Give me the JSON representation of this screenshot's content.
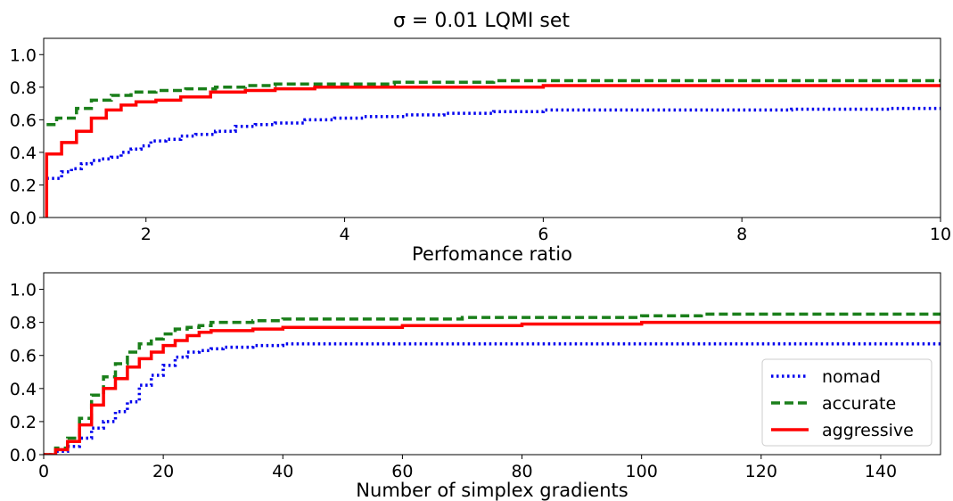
{
  "figure": {
    "title": "σ = 0.01 LQMI set"
  },
  "colors": {
    "nomad": "#0000ee",
    "accurate": "#1a7f1a",
    "aggressive": "#ff0000",
    "axes": "#000000",
    "legend_border": "#cccccc"
  },
  "chart_data": [
    {
      "type": "line",
      "step": true,
      "xlabel": "Perfomance ratio",
      "ylabel": "",
      "xlim": [
        0.97,
        10
      ],
      "ylim": [
        0,
        1.1
      ],
      "xticks": [
        2,
        4,
        6,
        8,
        10
      ],
      "xtick_labels": [
        "2",
        "4",
        "6",
        "8",
        "10"
      ],
      "yticks": [
        0.0,
        0.2,
        0.4,
        0.6,
        0.8,
        1.0
      ],
      "ytick_labels": [
        "0.0",
        "0.2",
        "0.4",
        "0.6",
        "0.8",
        "1.0"
      ],
      "grid": false,
      "legend": false,
      "series": [
        {
          "name": "nomad",
          "style": "dotted",
          "x": [
            1.0,
            1.15,
            1.25,
            1.35,
            1.45,
            1.55,
            1.65,
            1.75,
            1.85,
            1.95,
            2.05,
            2.2,
            2.35,
            2.5,
            2.7,
            2.9,
            3.1,
            3.3,
            3.6,
            3.9,
            4.2,
            4.6,
            5.0,
            5.5,
            6.0,
            6.5,
            7.5,
            8.5,
            9.5,
            10.0
          ],
          "y": [
            0.24,
            0.28,
            0.3,
            0.33,
            0.35,
            0.36,
            0.37,
            0.4,
            0.42,
            0.44,
            0.47,
            0.48,
            0.5,
            0.51,
            0.53,
            0.56,
            0.57,
            0.58,
            0.6,
            0.61,
            0.62,
            0.63,
            0.64,
            0.65,
            0.66,
            0.66,
            0.66,
            0.665,
            0.67,
            0.67
          ]
        },
        {
          "name": "accurate",
          "style": "dashed",
          "x": [
            1.0,
            1.1,
            1.3,
            1.45,
            1.65,
            1.85,
            2.1,
            2.4,
            2.7,
            3.0,
            3.3,
            3.8,
            4.5,
            5.5,
            7.0,
            10.0
          ],
          "y": [
            0.57,
            0.61,
            0.67,
            0.72,
            0.75,
            0.77,
            0.78,
            0.79,
            0.8,
            0.81,
            0.82,
            0.82,
            0.83,
            0.84,
            0.84,
            0.84
          ]
        },
        {
          "name": "aggressive",
          "style": "solid",
          "x": [
            0.99,
            1.0,
            1.15,
            1.3,
            1.45,
            1.6,
            1.75,
            1.9,
            2.1,
            2.35,
            2.65,
            3.0,
            3.3,
            3.7,
            4.5,
            6.0,
            10.0
          ],
          "y": [
            0.0,
            0.39,
            0.46,
            0.53,
            0.61,
            0.66,
            0.69,
            0.71,
            0.72,
            0.74,
            0.77,
            0.78,
            0.79,
            0.8,
            0.8,
            0.81,
            0.81
          ]
        }
      ]
    },
    {
      "type": "line",
      "step": true,
      "xlabel": "Number of simplex gradients",
      "ylabel": "",
      "xlim": [
        0,
        150
      ],
      "ylim": [
        0,
        1.1
      ],
      "xticks": [
        0,
        20,
        40,
        60,
        80,
        100,
        120,
        140
      ],
      "xtick_labels": [
        "0",
        "20",
        "40",
        "60",
        "80",
        "100",
        "120",
        "140"
      ],
      "yticks": [
        0.0,
        0.2,
        0.4,
        0.6,
        0.8,
        1.0
      ],
      "ytick_labels": [
        "0.0",
        "0.2",
        "0.4",
        "0.6",
        "0.8",
        "1.0"
      ],
      "grid": false,
      "legend": "lower right",
      "series": [
        {
          "name": "nomad",
          "style": "dotted",
          "x": [
            0,
            2,
            4,
            6,
            8,
            10,
            12,
            14,
            16,
            18,
            20,
            22,
            24,
            26,
            28,
            30,
            35,
            40,
            50,
            150
          ],
          "y": [
            0,
            0.02,
            0.05,
            0.1,
            0.16,
            0.2,
            0.26,
            0.32,
            0.42,
            0.48,
            0.54,
            0.59,
            0.62,
            0.63,
            0.64,
            0.65,
            0.66,
            0.67,
            0.67,
            0.67
          ]
        },
        {
          "name": "accurate",
          "style": "dashed",
          "x": [
            0,
            2,
            4,
            6,
            8,
            10,
            12,
            14,
            16,
            18,
            20,
            22,
            24,
            26,
            28,
            35,
            40,
            50,
            60,
            70,
            80,
            100,
            110,
            150
          ],
          "y": [
            0,
            0.04,
            0.1,
            0.22,
            0.36,
            0.47,
            0.55,
            0.62,
            0.67,
            0.7,
            0.73,
            0.76,
            0.77,
            0.78,
            0.8,
            0.81,
            0.82,
            0.82,
            0.82,
            0.83,
            0.83,
            0.84,
            0.85,
            0.85
          ]
        },
        {
          "name": "aggressive",
          "style": "solid",
          "x": [
            0,
            2,
            4,
            6,
            8,
            10,
            12,
            14,
            16,
            18,
            20,
            22,
            24,
            26,
            28,
            35,
            40,
            60,
            80,
            100,
            120,
            150
          ],
          "y": [
            0,
            0.03,
            0.08,
            0.18,
            0.3,
            0.4,
            0.46,
            0.53,
            0.58,
            0.62,
            0.66,
            0.69,
            0.72,
            0.74,
            0.75,
            0.76,
            0.77,
            0.78,
            0.79,
            0.8,
            0.8,
            0.81
          ]
        }
      ]
    }
  ]
}
